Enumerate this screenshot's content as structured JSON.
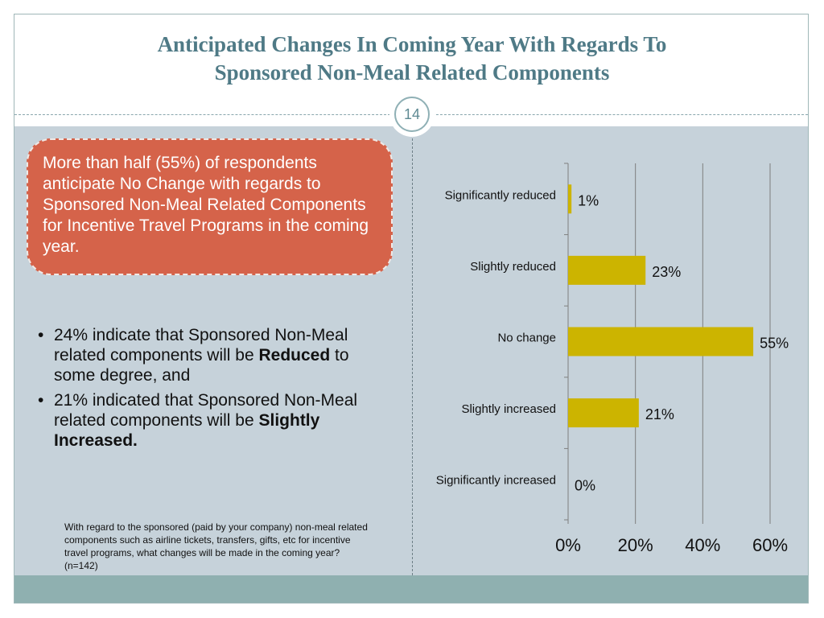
{
  "slide": {
    "title_line1": "Anticipated Changes In Coming Year With Regards To",
    "title_line2": "Sponsored Non-Meal Related Components",
    "page_number": "14"
  },
  "callout": {
    "text": "More than half (55%) of respondents anticipate No Change with regards to Sponsored Non-Meal Related Components for Incentive Travel Programs in the coming year."
  },
  "bullets": [
    {
      "symbol": "•",
      "text": "24% indicate that Sponsored Non-Meal related components will be ",
      "bold": "Reduced",
      "tail": " to some degree, and"
    },
    {
      "symbol": "•",
      "text": "21% indicated that Sponsored Non-Meal related components will be ",
      "bold": "Slightly Increased.",
      "tail": ""
    }
  ],
  "note": "With regard to the sponsored (paid by your company) non-meal related components such as airline tickets, transfers, gifts, etc for  incentive travel programs, what changes  will be made in the coming year?  (n=142)",
  "colors": {
    "bar": "#ccb400",
    "callout": "#d5634a",
    "title": "#4f7a86",
    "panel": "#c6d2da",
    "footer": "#8fb0b0"
  },
  "chart_data": {
    "type": "bar",
    "orientation": "horizontal",
    "categories": [
      "Significantly reduced",
      "Slightly reduced",
      "No change",
      "Slightly increased",
      "Significantly increased"
    ],
    "values": [
      1,
      23,
      55,
      21,
      0
    ],
    "value_labels": [
      "1%",
      "23%",
      "55%",
      "21%",
      "0%"
    ],
    "xlim": [
      0,
      60
    ],
    "xticks": [
      0,
      20,
      40,
      60
    ],
    "xtick_labels": [
      "0%",
      "20%",
      "40%",
      "60%"
    ],
    "grid": true,
    "legend": "none"
  }
}
